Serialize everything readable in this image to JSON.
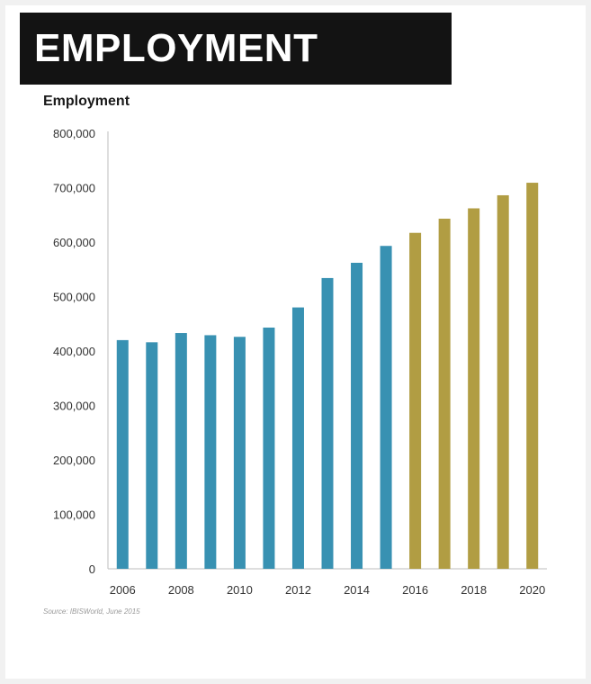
{
  "header": {
    "title": "EMPLOYMENT"
  },
  "chart_data": {
    "type": "bar",
    "title": "Employment",
    "xlabel": "",
    "ylabel": "",
    "ylim": [
      0,
      800000
    ],
    "yticks": [
      "0",
      "100,000",
      "200,000",
      "300,000",
      "400,000",
      "500,000",
      "600,000",
      "700,000",
      "800,000"
    ],
    "categories": [
      "2006",
      "2007",
      "2008",
      "2009",
      "2010",
      "2011",
      "2012",
      "2013",
      "2014",
      "2015",
      "2016",
      "2017",
      "2018",
      "2019",
      "2020"
    ],
    "xtick_labels": [
      "2006",
      "",
      "2008",
      "",
      "2010",
      "",
      "2012",
      "",
      "2014",
      "",
      "2016",
      "",
      "2018",
      "",
      "2020"
    ],
    "values": [
      420000,
      416000,
      433000,
      429000,
      426000,
      443000,
      480000,
      534000,
      562000,
      593000,
      617000,
      643000,
      662000,
      686000,
      709000
    ],
    "historical_color": "#3891b2",
    "forecast_color": "#b19d43",
    "forecast_from_index": 10,
    "grid": false,
    "source": "Source: IBISWorld, June 2015"
  }
}
